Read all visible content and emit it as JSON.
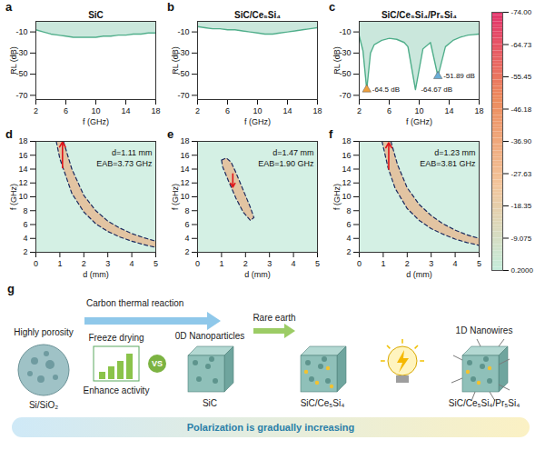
{
  "chart_data": [
    {
      "panel": "a",
      "type": "line",
      "title": "SiC",
      "x_label": "f (GHz)",
      "y_label": "RL (dB)",
      "x": [
        2,
        3,
        4,
        5,
        6,
        7,
        8,
        9,
        10,
        11,
        12,
        13,
        14,
        15,
        16,
        17,
        18
      ],
      "values": [
        -8,
        -10,
        -12,
        -13,
        -14,
        -15,
        -15,
        -15,
        -15,
        -14,
        -14,
        -13,
        -13,
        -12,
        -12,
        -11,
        -11
      ],
      "xlim": [
        2,
        18
      ],
      "xticks": [
        2,
        6,
        10,
        14,
        18
      ],
      "ylim": [
        -74,
        0
      ],
      "yticks": [
        -70,
        -50,
        -30,
        -10
      ],
      "color": "#4fae8a"
    },
    {
      "panel": "b",
      "type": "line",
      "title": "SiC/Ce₅Si₄",
      "x_label": "f (GHz)",
      "y_label": "RL (dB)",
      "x": [
        2,
        3,
        4,
        5,
        6,
        7,
        8,
        9,
        10,
        11,
        12,
        13,
        14,
        15,
        16,
        17,
        18
      ],
      "values": [
        -5,
        -6,
        -7,
        -7,
        -8,
        -8,
        -9,
        -10,
        -11,
        -12,
        -12,
        -11,
        -10,
        -9,
        -8,
        -7,
        -6
      ],
      "xlim": [
        2,
        18
      ],
      "xticks": [
        2,
        6,
        10,
        14,
        18
      ],
      "ylim": [
        -74,
        0
      ],
      "yticks": [
        -70,
        -50,
        -30,
        -10
      ],
      "color": "#4fae8a"
    },
    {
      "panel": "c",
      "type": "line",
      "title": "SiC/Ce₅Si₄/Pr₅Si₄",
      "x_label": "f (GHz)",
      "y_label": "RL (dB)",
      "x": [
        2,
        2.5,
        3,
        3.5,
        4,
        5,
        6,
        7,
        8,
        8.5,
        9.5,
        10.5,
        11.5,
        12.5,
        13.5,
        14.5,
        15.5,
        16.5,
        18
      ],
      "values": [
        -14,
        -28,
        -64.5,
        -30,
        -22,
        -18,
        -16,
        -17,
        -20,
        -24,
        -64.67,
        -26,
        -20,
        -51.89,
        -24,
        -18,
        -15,
        -13,
        -12
      ],
      "xlim": [
        2,
        18
      ],
      "xticks": [
        2,
        6,
        10,
        14,
        18
      ],
      "ylim": [
        -74,
        0
      ],
      "yticks": [
        -70,
        -50,
        -30,
        -10
      ],
      "color": "#4fae8a",
      "annotations": [
        {
          "text": "-64.5 dB",
          "x": 3,
          "y": -64.5,
          "marker": "triangle",
          "color": "#f0a03c"
        },
        {
          "text": "-64.67 dB",
          "x": 9.5,
          "y": -64.67
        },
        {
          "text": "-51.89 dB",
          "x": 12.5,
          "y": -51.89,
          "marker": "triangle",
          "color": "#6aaed6"
        }
      ]
    },
    {
      "panel": "d",
      "type": "contour",
      "x_label": "d (mm)",
      "y_label": "f (GHz)",
      "xlim": [
        0,
        5
      ],
      "xticks": [
        0,
        1,
        2,
        3,
        4,
        5
      ],
      "ylim": [
        2,
        18
      ],
      "yticks": [
        2,
        4,
        6,
        8,
        10,
        12,
        14,
        16,
        18
      ],
      "contour_lines": [
        [
          [
            0.85,
            18
          ],
          [
            1,
            15.5
          ],
          [
            1.5,
            10.5
          ],
          [
            2,
            7.8
          ],
          [
            2.5,
            6.1
          ],
          [
            3,
            5
          ],
          [
            3.5,
            4.2
          ],
          [
            4,
            3.6
          ],
          [
            4.5,
            3.1
          ],
          [
            5,
            2.7
          ]
        ],
        [
          [
            1.15,
            18
          ],
          [
            1.5,
            14
          ],
          [
            2,
            10.2
          ],
          [
            2.5,
            8
          ],
          [
            3,
            6.5
          ],
          [
            3.5,
            5.5
          ],
          [
            4,
            4.7
          ],
          [
            4.5,
            4.1
          ],
          [
            5,
            3.6
          ]
        ]
      ],
      "eab_arrow": {
        "x": 1.11,
        "y1": 14.2,
        "y2": 17.93
      },
      "annotations": [
        "d=1.11 mm",
        "EAB=3.73 GHz"
      ],
      "color": "#e2c4a2"
    },
    {
      "panel": "e",
      "type": "contour",
      "x_label": "d (mm)",
      "y_label": "f (GHz)",
      "xlim": [
        0,
        5
      ],
      "xticks": [
        0,
        1,
        2,
        3,
        4,
        5
      ],
      "ylim": [
        2,
        18
      ],
      "yticks": [
        2,
        4,
        6,
        8,
        10,
        12,
        14,
        16,
        18
      ],
      "contour_lines": [
        [
          [
            1,
            15.3
          ],
          [
            1.2,
            15.6
          ],
          [
            1.4,
            15
          ],
          [
            1.6,
            13.5
          ],
          [
            1.9,
            11
          ],
          [
            2.2,
            8.5
          ],
          [
            2.35,
            7
          ],
          [
            2.2,
            6.6
          ],
          [
            1.9,
            7.8
          ],
          [
            1.6,
            9.8
          ],
          [
            1.3,
            12.2
          ],
          [
            1.05,
            14.3
          ],
          [
            1,
            15.3
          ]
        ]
      ],
      "eab_arrow": {
        "x": 1.47,
        "y1": 13.3,
        "y2": 11.4
      },
      "annotations": [
        "d=1.47 mm",
        "EAB=1.90 GHz"
      ],
      "color": "#e2c4a2"
    },
    {
      "panel": "f",
      "type": "contour",
      "x_label": "d (mm)",
      "y_label": "f (GHz)",
      "xlim": [
        0,
        5
      ],
      "xticks": [
        0,
        1,
        2,
        3,
        4,
        5
      ],
      "ylim": [
        2,
        18
      ],
      "yticks": [
        2,
        4,
        6,
        8,
        10,
        12,
        14,
        16,
        18
      ],
      "contour_lines": [
        [
          [
            0.95,
            18
          ],
          [
            1.2,
            14.2
          ],
          [
            1.5,
            11.2
          ],
          [
            2,
            8.3
          ],
          [
            2.5,
            6.6
          ],
          [
            3,
            5.4
          ],
          [
            3.5,
            4.6
          ],
          [
            4,
            3.9
          ],
          [
            4.5,
            3.4
          ],
          [
            5,
            3
          ]
        ],
        [
          [
            1.32,
            18
          ],
          [
            1.6,
            14.6
          ],
          [
            2,
            11.3
          ],
          [
            2.5,
            8.9
          ],
          [
            3,
            7.3
          ],
          [
            3.5,
            6.1
          ],
          [
            4,
            5.2
          ],
          [
            4.5,
            4.5
          ],
          [
            5,
            4
          ]
        ]
      ],
      "eab_arrow": {
        "x": 1.23,
        "y1": 14.0,
        "y2": 17.81
      },
      "annotations": [
        "d=1.23 mm",
        "EAB=3.81 GHz"
      ],
      "color": "#e2c4a2"
    }
  ],
  "colorbar": {
    "range": [
      -74,
      0.2
    ],
    "ticks": [
      {
        "value": -74,
        "label": "-74.00"
      },
      {
        "value": -64.725,
        "label": "-64.73"
      },
      {
        "value": -55.45,
        "label": "-55.45"
      },
      {
        "value": -46.175,
        "label": "-46.18"
      },
      {
        "value": -36.9,
        "label": "-36.90"
      },
      {
        "value": -27.625,
        "label": "-27.63"
      },
      {
        "value": -18.35,
        "label": "-18.35"
      },
      {
        "value": -9.075,
        "label": "-9.075"
      },
      {
        "value": 0.2,
        "label": "0.2000"
      }
    ],
    "colors": [
      "#e2336b",
      "#ec8a5c",
      "#f2c49a",
      "#c4ecdb"
    ]
  },
  "schematic": {
    "panel": "g",
    "start": {
      "caption": "Highly porosity",
      "material": "Si/SiO₂"
    },
    "step1": "Carbon thermal reaction",
    "freeze": {
      "title": "Freeze drying",
      "caption": "Enhance activity",
      "badge": "VS"
    },
    "stage1": {
      "caption": "0D Nanoparticles",
      "material": "SiC"
    },
    "step2": "Rare earth",
    "stage2": {
      "material": "SiC/Ce₅Si₄"
    },
    "stage3": {
      "caption": "1D Nanowires",
      "material": "SiC/Ce₅Si₄/Pr₅Si₄"
    },
    "footer": "Polarization is gradually increasing"
  }
}
